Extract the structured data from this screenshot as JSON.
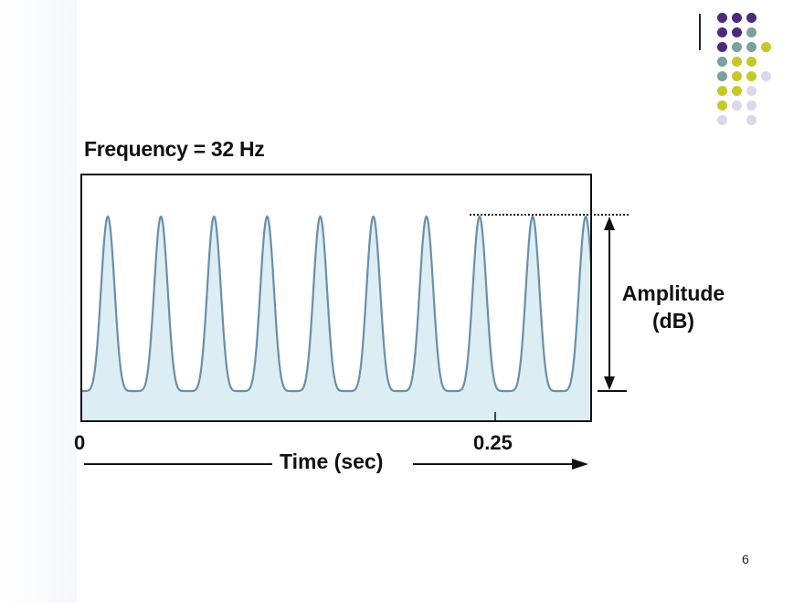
{
  "slide": {
    "page_number": "6",
    "decoration": {
      "colors": {
        "purple": "#4b2a7c",
        "teal": "#7aa0a0",
        "yellow": "#c7c72a",
        "lavender": "#d9d9ea"
      },
      "dot_grid": [
        [
          "purple",
          "purple",
          "purple",
          "",
          ""
        ],
        [
          "purple",
          "purple",
          "teal",
          "",
          ""
        ],
        [
          "purple",
          "teal",
          "teal",
          "yellow",
          ""
        ],
        [
          "teal",
          "yellow",
          "yellow",
          "",
          ""
        ],
        [
          "teal",
          "yellow",
          "yellow",
          "lavender",
          ""
        ],
        [
          "yellow",
          "yellow",
          "lavender",
          "",
          ""
        ],
        [
          "yellow",
          "lavender",
          "lavender",
          "",
          ""
        ],
        [
          "lavender",
          "",
          "lavender",
          "",
          ""
        ]
      ]
    }
  },
  "chart_data": {
    "type": "line",
    "title": "Frequency = 32 Hz",
    "xlabel": "Time (sec)",
    "ylabel": "Amplitude\n(dB)",
    "x_ticks": [
      "0",
      "0.25"
    ],
    "frequency_hz": 32,
    "cycles_shown": 10,
    "x_range_sec": [
      0,
      0.3
    ],
    "colors": {
      "line": "#6b8fa8",
      "fill": "#dceef4",
      "frame": "#111111"
    },
    "peaks_sec": [
      0.0156,
      0.0469,
      0.0781,
      0.1094,
      0.1406,
      0.1719,
      0.2031,
      0.2344,
      0.2656,
      0.2969
    ]
  }
}
